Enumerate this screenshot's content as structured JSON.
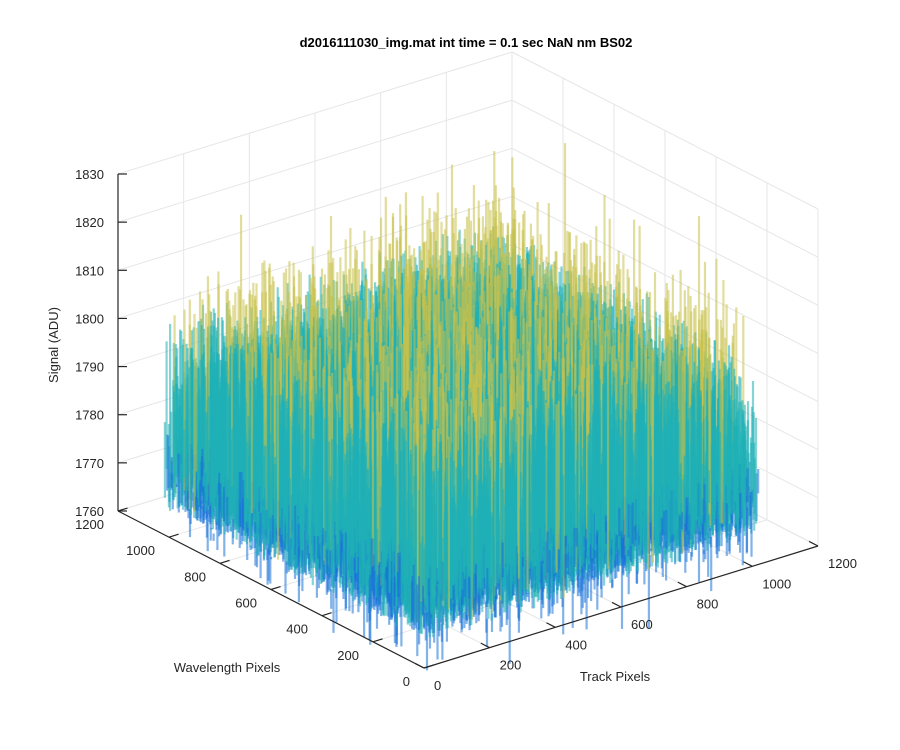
{
  "chart_data": {
    "type": "surface",
    "title": "d2016111030_img.mat int time = 0.1 sec  NaN nm BS02",
    "xlabel": "Track Pixels",
    "ylabel": "Wavelength Pixels",
    "zlabel": "Signal (ADU)",
    "x_ticks": [
      "0",
      "200",
      "400",
      "600",
      "800",
      "1000",
      "1200"
    ],
    "y_ticks": [
      "0",
      "200",
      "400",
      "600",
      "800",
      "1000",
      "1200"
    ],
    "z_ticks": [
      "1760",
      "1770",
      "1780",
      "1790",
      "1800",
      "1810",
      "1820",
      "1830"
    ],
    "xlim": [
      0,
      1200
    ],
    "ylim": [
      0,
      1200
    ],
    "zlim": [
      1760,
      1830
    ],
    "surface_extent": {
      "x": [
        0,
        1024
      ],
      "y": [
        0,
        1024
      ]
    },
    "signal_mean": 1785,
    "signal_noise_range": [
      1765,
      1822
    ],
    "colormap": "parula",
    "grid": true
  },
  "colors": {
    "surface_low": "#1a73d9",
    "surface_mid": "#1fb0b6",
    "surface_high": "#c9c14a",
    "axis": "#262626",
    "grid": "#e6e6e6"
  }
}
